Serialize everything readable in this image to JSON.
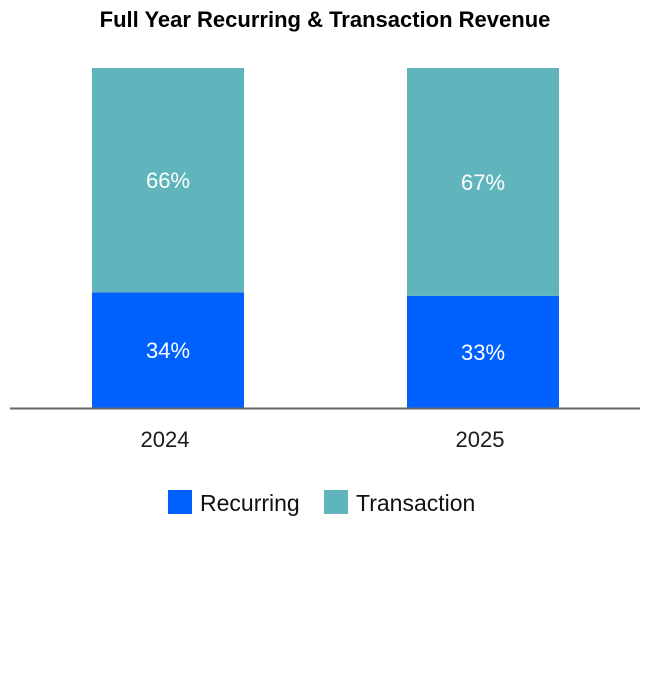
{
  "chart_data": {
    "type": "bar",
    "stacked": true,
    "title": "Full Year Recurring & Transaction Revenue",
    "categories": [
      "2024",
      "2025"
    ],
    "series": [
      {
        "name": "Recurring",
        "values": [
          34,
          33
        ],
        "labels": [
          "34%",
          "33%"
        ],
        "color": "#0061FE"
      },
      {
        "name": "Transaction",
        "values": [
          66,
          67
        ],
        "labels": [
          "66%",
          "67%"
        ],
        "color": "#5FB5BB"
      }
    ],
    "value_unit": "%",
    "ylim": [
      0,
      100
    ],
    "grid": false,
    "legend": "bottom-center",
    "xlabel": "",
    "ylabel": ""
  },
  "colors": {
    "axis": "#666666"
  }
}
